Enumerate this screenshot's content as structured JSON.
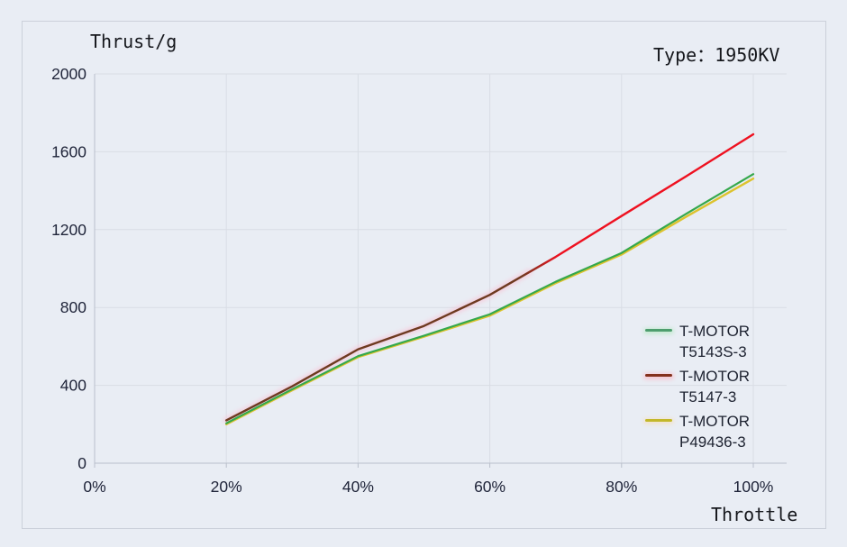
{
  "page": {
    "background": "#E9EDF4",
    "frame_border_color": "#CBD0DA"
  },
  "titles": {
    "thrust_label": "Thrust/g",
    "type_label": "Type：1950KV",
    "throttle_label": "Throttle"
  },
  "chart_data": {
    "type": "line",
    "title": "Type：1950KV",
    "xlabel": "Throttle",
    "ylabel": "Thrust/g",
    "x_percent": [
      20,
      30,
      40,
      50,
      60,
      70,
      80,
      90,
      100
    ],
    "series": [
      {
        "brand": "T-MOTOR",
        "model": "T5143S-3",
        "color": "#35A84C",
        "legend_color": "#4E9E6E",
        "glow_color": "#C6EAD2",
        "values": [
          205,
          380,
          550,
          655,
          765,
          932,
          1080,
          1285,
          1485
        ]
      },
      {
        "brand": "T-MOTOR",
        "model": "T5147-3",
        "color": "#EE1120",
        "color_dark": "#6E3A20",
        "legend_color": "#84301C",
        "glow_color": "#F6C6D2",
        "values": [
          220,
          395,
          585,
          705,
          865,
          1060,
          1270,
          1478,
          1690
        ]
      },
      {
        "brand": "T-MOTOR",
        "model": "P49436-3",
        "color": "#DDC32E",
        "legend_color": "#C3B82A",
        "glow_color": "#F2E3CE",
        "values": [
          200,
          375,
          545,
          650,
          758,
          925,
          1072,
          1270,
          1462
        ]
      }
    ],
    "xticks": [
      "0%",
      "20%",
      "40%",
      "60%",
      "80%",
      "100%"
    ],
    "xtick_values": [
      0,
      20,
      40,
      60,
      80,
      100
    ],
    "ytick_labels": [
      "0",
      "400",
      "800",
      "1200",
      "1600",
      "2000"
    ],
    "ytick_values": [
      0,
      400,
      800,
      1200,
      1600,
      2000
    ],
    "xlim": [
      0,
      105
    ],
    "ylim": [
      0,
      2000
    ],
    "grid": true,
    "legend_position": "right-lower",
    "line_glow": {
      "color": "#F7C6D8",
      "series": "T5147-3",
      "end_percent": 66
    },
    "colors": {
      "grid": "#D9DDE5",
      "axis": "#B9BFCB",
      "tick_text": "#20253A"
    }
  }
}
